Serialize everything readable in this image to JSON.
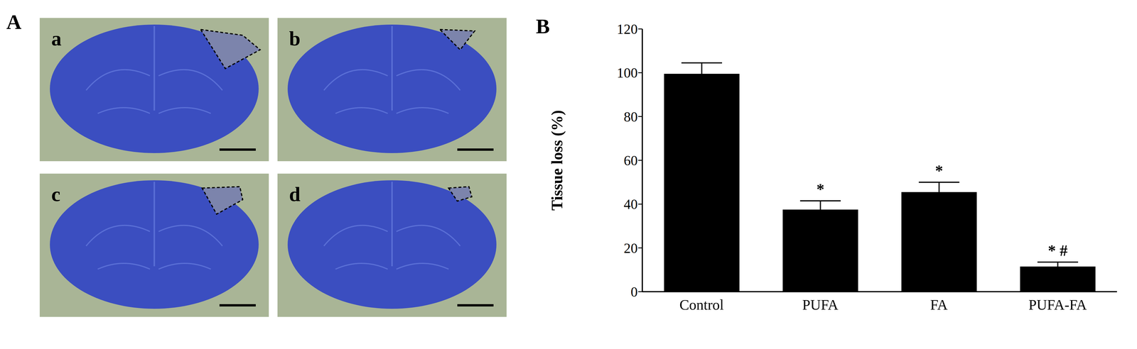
{
  "figure": {
    "panel_labels": [
      "A",
      "B"
    ],
    "image_labels": [
      "a",
      "b",
      "c",
      "d"
    ]
  },
  "chart_data": {
    "type": "bar",
    "categories": [
      "Control",
      "PUFA",
      "FA",
      "PUFA-FA"
    ],
    "values": [
      99.5,
      37.5,
      45.5,
      11.5
    ],
    "errors": [
      5,
      4,
      4.5,
      2
    ],
    "color": "#000000",
    "ylabel": "Tissue loss (%)",
    "ylim": [
      0,
      120
    ],
    "yticks": [
      0,
      20,
      40,
      60,
      80,
      100,
      120
    ],
    "grid": false,
    "annotations": [
      {
        "category": "PUFA",
        "text": "*"
      },
      {
        "category": "FA",
        "text": "*"
      },
      {
        "category": "PUFA-FA",
        "text": "* #"
      }
    ]
  }
}
